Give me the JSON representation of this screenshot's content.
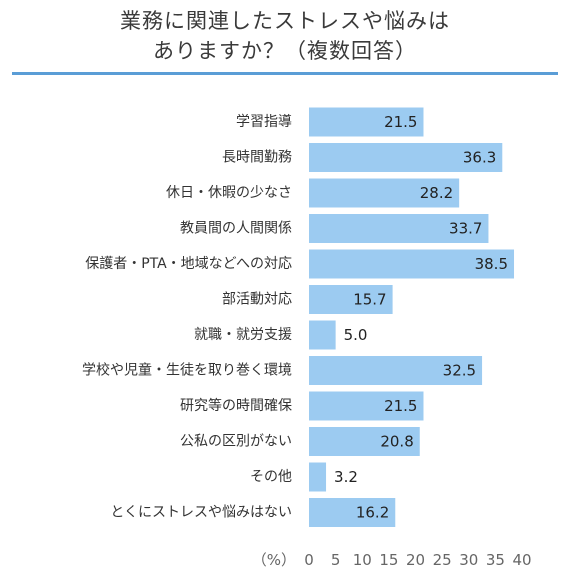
{
  "title_line1": "業務に関連したストレスや悩みは",
  "title_line2": "ありますか？（複数回答）",
  "colors": {
    "bar": "#9ccbf1",
    "rule": "#5a9dd6"
  },
  "chart_data": {
    "type": "bar",
    "orientation": "horizontal",
    "title": "業務に関連したストレスや悩みは ありますか？（複数回答）",
    "categories": [
      "学習指導",
      "長時間勤務",
      "休日・休暇の少なさ",
      "教員間の人間関係",
      "保護者・PTA・地域などへの対応",
      "部活動対応",
      "就職・就労支援",
      "学校や児童・生徒を取り巻く環境",
      "研究等の時間確保",
      "公私の区別がない",
      "その他",
      "とくにストレスや悩みはない"
    ],
    "values": [
      21.5,
      36.3,
      28.2,
      33.7,
      38.5,
      15.7,
      5.0,
      32.5,
      21.5,
      20.8,
      3.2,
      16.2
    ],
    "value_labels": [
      "21.5",
      "36.3",
      "28.2",
      "33.7",
      "38.5",
      "15.7",
      "5.0",
      "32.5",
      "21.5",
      "20.8",
      "3.2",
      "16.2"
    ],
    "xlabel": "（%）",
    "xlim": [
      0,
      40
    ],
    "xticks": [
      "0",
      "5",
      "10",
      "15",
      "20",
      "25",
      "30",
      "35",
      "40"
    ],
    "grid": false
  }
}
